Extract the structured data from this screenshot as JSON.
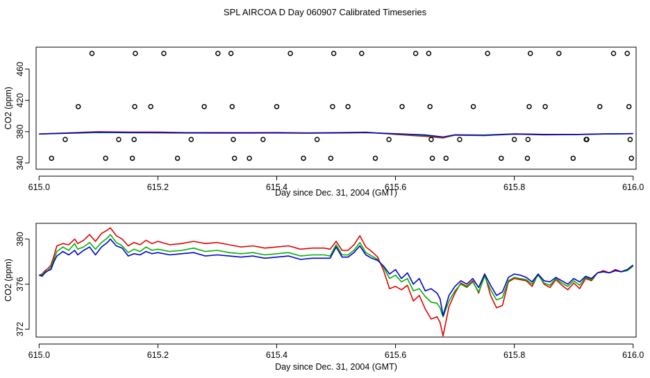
{
  "page_title": "SPL AIRCOA D  Day 060907  Calibrated Timeseries",
  "colors": {
    "axis": "#000000",
    "red": "#e00000",
    "green": "#00b000",
    "blue": "#0000cc",
    "points": "#000000"
  },
  "chart_data": [
    {
      "type": "scatter",
      "name": "top-panel",
      "xlabel": "Day since Dec. 31, 2004 (GMT)",
      "ylabel": "CO2 (ppm)",
      "xlim": [
        614.995,
        616.005
      ],
      "ylim": [
        332,
        488
      ],
      "xticks": [
        615.0,
        615.2,
        615.4,
        615.6,
        615.8,
        616.0
      ],
      "xtick_labels": [
        "615.0",
        "615.2",
        "615.4",
        "615.6",
        "615.8",
        "616.0"
      ],
      "yticks": [
        340,
        380,
        420,
        460
      ],
      "ytick_labels": [
        "340",
        "380",
        "420",
        "460"
      ],
      "points": [
        [
          615.021,
          346
        ],
        [
          615.044,
          370
        ],
        [
          615.066,
          412
        ],
        [
          615.089,
          480
        ],
        [
          615.112,
          346
        ],
        [
          615.134,
          370
        ],
        [
          615.157,
          346
        ],
        [
          615.16,
          370
        ],
        [
          615.161,
          412
        ],
        [
          615.162,
          480
        ],
        [
          615.188,
          412
        ],
        [
          615.21,
          480
        ],
        [
          615.233,
          346
        ],
        [
          615.256,
          370
        ],
        [
          615.278,
          412
        ],
        [
          615.301,
          480
        ],
        [
          615.323,
          480
        ],
        [
          615.325,
          412
        ],
        [
          615.327,
          370
        ],
        [
          615.329,
          346
        ],
        [
          615.354,
          346
        ],
        [
          615.377,
          370
        ],
        [
          615.4,
          412
        ],
        [
          615.423,
          480
        ],
        [
          615.445,
          346
        ],
        [
          615.468,
          370
        ],
        [
          615.491,
          346
        ],
        [
          615.494,
          412
        ],
        [
          615.496,
          480
        ],
        [
          615.52,
          412
        ],
        [
          615.543,
          480
        ],
        [
          615.566,
          346
        ],
        [
          615.589,
          370
        ],
        [
          615.611,
          412
        ],
        [
          615.634,
          480
        ],
        [
          615.656,
          480
        ],
        [
          615.658,
          412
        ],
        [
          615.66,
          370
        ],
        [
          615.662,
          346
        ],
        [
          615.685,
          346
        ],
        [
          615.708,
          370
        ],
        [
          615.731,
          412
        ],
        [
          615.755,
          480
        ],
        [
          615.778,
          346
        ],
        [
          615.8,
          370
        ],
        [
          615.822,
          346
        ],
        [
          615.823,
          370
        ],
        [
          615.825,
          412
        ],
        [
          615.827,
          480
        ],
        [
          615.852,
          412
        ],
        [
          615.875,
          480
        ],
        [
          615.899,
          346
        ],
        [
          615.921,
          370
        ],
        [
          615.922,
          370
        ],
        [
          615.944,
          412
        ],
        [
          615.967,
          480
        ],
        [
          615.99,
          480
        ],
        [
          615.993,
          412
        ],
        [
          615.995,
          370
        ],
        [
          615.997,
          346
        ]
      ],
      "series": [
        {
          "name": "red",
          "color": "#e00000",
          "x": [
            615.0,
            615.05,
            615.1,
            615.15,
            615.2,
            615.25,
            615.3,
            615.35,
            615.4,
            615.45,
            615.5,
            615.55,
            615.6,
            615.65,
            615.68,
            615.7,
            615.75,
            615.8,
            615.85,
            615.9,
            615.95,
            616.0
          ],
          "values": [
            377,
            378.5,
            380,
            379.5,
            379.5,
            378.8,
            379,
            378.8,
            379,
            378.5,
            378.8,
            379.3,
            376.5,
            374,
            372,
            375.5,
            375,
            376.8,
            376,
            376.2,
            377,
            377.5
          ]
        },
        {
          "name": "green",
          "color": "#00b000",
          "x": [
            615.0,
            615.05,
            615.1,
            615.15,
            615.2,
            615.25,
            615.3,
            615.35,
            615.4,
            615.45,
            615.5,
            615.55,
            615.6,
            615.65,
            615.68,
            615.7,
            615.75,
            615.8,
            615.85,
            615.9,
            615.95,
            616.0
          ],
          "values": [
            377,
            378.3,
            379.3,
            379,
            378.8,
            378.5,
            378.5,
            378.4,
            378.5,
            378.2,
            378.5,
            379,
            377,
            375,
            373,
            375.8,
            375.2,
            377,
            376.3,
            376.3,
            377,
            377.5
          ]
        },
        {
          "name": "blue",
          "color": "#0000cc",
          "x": [
            615.0,
            615.05,
            615.1,
            615.15,
            615.2,
            615.25,
            615.3,
            615.35,
            615.4,
            615.45,
            615.5,
            615.55,
            615.6,
            615.65,
            615.68,
            615.7,
            615.75,
            615.8,
            615.85,
            615.9,
            615.95,
            616.0
          ],
          "values": [
            377,
            378,
            379,
            378.7,
            378.6,
            378.4,
            378.3,
            378.3,
            378.4,
            378.1,
            378.4,
            378.8,
            377.4,
            375.8,
            373.2,
            376,
            375.6,
            377.1,
            376.5,
            376.4,
            377.1,
            377.5
          ]
        }
      ]
    },
    {
      "type": "line",
      "name": "bottom-panel",
      "xlabel": "Day since Dec. 31, 2004 (GMT)",
      "ylabel": "CO2 (ppm)",
      "xlim": [
        614.995,
        616.005
      ],
      "ylim": [
        371.3,
        381.4
      ],
      "xticks": [
        615.0,
        615.2,
        615.4,
        615.6,
        615.8,
        616.0
      ],
      "xtick_labels": [
        "615.0",
        "615.2",
        "615.4",
        "615.6",
        "615.8",
        "616.0"
      ],
      "yticks": [
        372,
        376,
        380
      ],
      "ytick_labels": [
        "372",
        "376",
        "380"
      ],
      "x": [
        615.0,
        615.005,
        615.01,
        615.015,
        615.02,
        615.025,
        615.03,
        615.04,
        615.05,
        615.06,
        615.065,
        615.075,
        615.085,
        615.095,
        615.105,
        615.115,
        615.12,
        615.13,
        615.14,
        615.15,
        615.16,
        615.17,
        615.18,
        615.19,
        615.2,
        615.22,
        615.24,
        615.26,
        615.28,
        615.3,
        615.32,
        615.34,
        615.36,
        615.38,
        615.4,
        615.42,
        615.44,
        615.46,
        615.48,
        615.49,
        615.5,
        615.51,
        615.52,
        615.53,
        615.54,
        615.55,
        615.56,
        615.57,
        615.58,
        615.59,
        615.6,
        615.61,
        615.62,
        615.63,
        615.64,
        615.65,
        615.66,
        615.67,
        615.675,
        615.68,
        615.69,
        615.7,
        615.71,
        615.72,
        615.73,
        615.74,
        615.75,
        615.76,
        615.77,
        615.78,
        615.79,
        615.8,
        615.81,
        615.82,
        615.83,
        615.84,
        615.85,
        615.86,
        615.87,
        615.88,
        615.89,
        615.9,
        615.91,
        615.92,
        615.93,
        615.94,
        615.95,
        615.96,
        615.97,
        615.98,
        615.99,
        616.0
      ],
      "series": [
        {
          "name": "red",
          "color": "#e00000",
          "values": [
            376.8,
            376.9,
            377.2,
            377.4,
            377.7,
            378.5,
            379.4,
            379.6,
            379.5,
            380.0,
            379.6,
            379.9,
            380.4,
            379.8,
            380.5,
            380.8,
            381.0,
            380.3,
            380.0,
            379.4,
            379.7,
            379.5,
            379.9,
            379.6,
            379.8,
            379.5,
            379.6,
            379.8,
            379.6,
            379.7,
            379.5,
            379.3,
            379.4,
            379.2,
            379.3,
            379.4,
            379.1,
            379.2,
            379.2,
            379.1,
            379.8,
            379.0,
            379.0,
            379.5,
            380.3,
            379.3,
            378.9,
            378.4,
            377.2,
            375.6,
            375.8,
            375.5,
            375.9,
            374.5,
            375.0,
            373.8,
            372.9,
            373.1,
            372.6,
            371.4,
            374.0,
            375.2,
            376.1,
            375.8,
            376.3,
            375.2,
            376.9,
            375.0,
            373.9,
            374.1,
            376.2,
            376.5,
            376.4,
            376.3,
            375.8,
            376.9,
            376.0,
            375.7,
            376.4,
            375.9,
            375.5,
            376.1,
            375.6,
            376.5,
            376.3,
            377.0,
            377.2,
            377.0,
            377.3,
            377.1,
            377.2,
            377.6
          ]
        },
        {
          "name": "green",
          "color": "#00b000",
          "values": [
            376.8,
            376.8,
            377.1,
            377.2,
            377.5,
            378.2,
            378.9,
            379.3,
            379.0,
            379.6,
            379.1,
            379.3,
            379.7,
            379.1,
            379.7,
            380.1,
            380.4,
            379.7,
            379.4,
            378.8,
            379.1,
            378.9,
            379.3,
            379.0,
            379.1,
            378.9,
            379.0,
            379.2,
            378.9,
            379.0,
            378.8,
            378.7,
            378.8,
            378.6,
            378.7,
            378.8,
            378.5,
            378.6,
            378.6,
            378.5,
            379.5,
            378.6,
            378.6,
            379.0,
            379.7,
            378.8,
            378.5,
            378.2,
            377.5,
            376.5,
            376.8,
            376.2,
            376.5,
            375.4,
            375.6,
            374.9,
            374.4,
            374.3,
            373.9,
            373.1,
            374.5,
            375.4,
            376.0,
            375.7,
            376.2,
            375.3,
            376.7,
            375.5,
            374.6,
            374.8,
            376.3,
            376.6,
            376.5,
            376.4,
            376.0,
            376.8,
            376.1,
            375.9,
            376.5,
            376.1,
            375.8,
            376.3,
            375.9,
            376.6,
            376.4,
            377.0,
            377.1,
            377.0,
            377.2,
            377.1,
            377.2,
            377.6
          ]
        },
        {
          "name": "blue",
          "color": "#0000cc",
          "values": [
            376.8,
            376.7,
            377.0,
            377.2,
            377.3,
            378.0,
            378.5,
            378.9,
            378.6,
            379.0,
            378.6,
            379.0,
            379.3,
            378.6,
            379.3,
            379.7,
            380.0,
            379.4,
            379.2,
            378.5,
            378.7,
            378.6,
            378.9,
            378.7,
            378.8,
            378.6,
            378.7,
            378.8,
            378.5,
            378.6,
            378.5,
            378.4,
            378.5,
            378.3,
            378.4,
            378.5,
            378.2,
            378.3,
            378.3,
            378.3,
            379.3,
            378.4,
            378.4,
            378.8,
            379.4,
            378.6,
            378.3,
            378.1,
            377.6,
            376.9,
            377.3,
            376.5,
            377.0,
            376.0,
            376.5,
            375.4,
            375.6,
            375.2,
            374.7,
            373.2,
            375.0,
            375.8,
            376.3,
            376.0,
            376.5,
            375.7,
            376.9,
            375.9,
            375.0,
            375.3,
            376.6,
            376.9,
            376.8,
            376.6,
            376.2,
            376.9,
            376.3,
            376.2,
            376.6,
            376.3,
            376.0,
            376.5,
            376.2,
            376.7,
            376.5,
            377.0,
            377.1,
            377.0,
            377.2,
            377.1,
            377.3,
            377.7
          ]
        }
      ]
    }
  ]
}
